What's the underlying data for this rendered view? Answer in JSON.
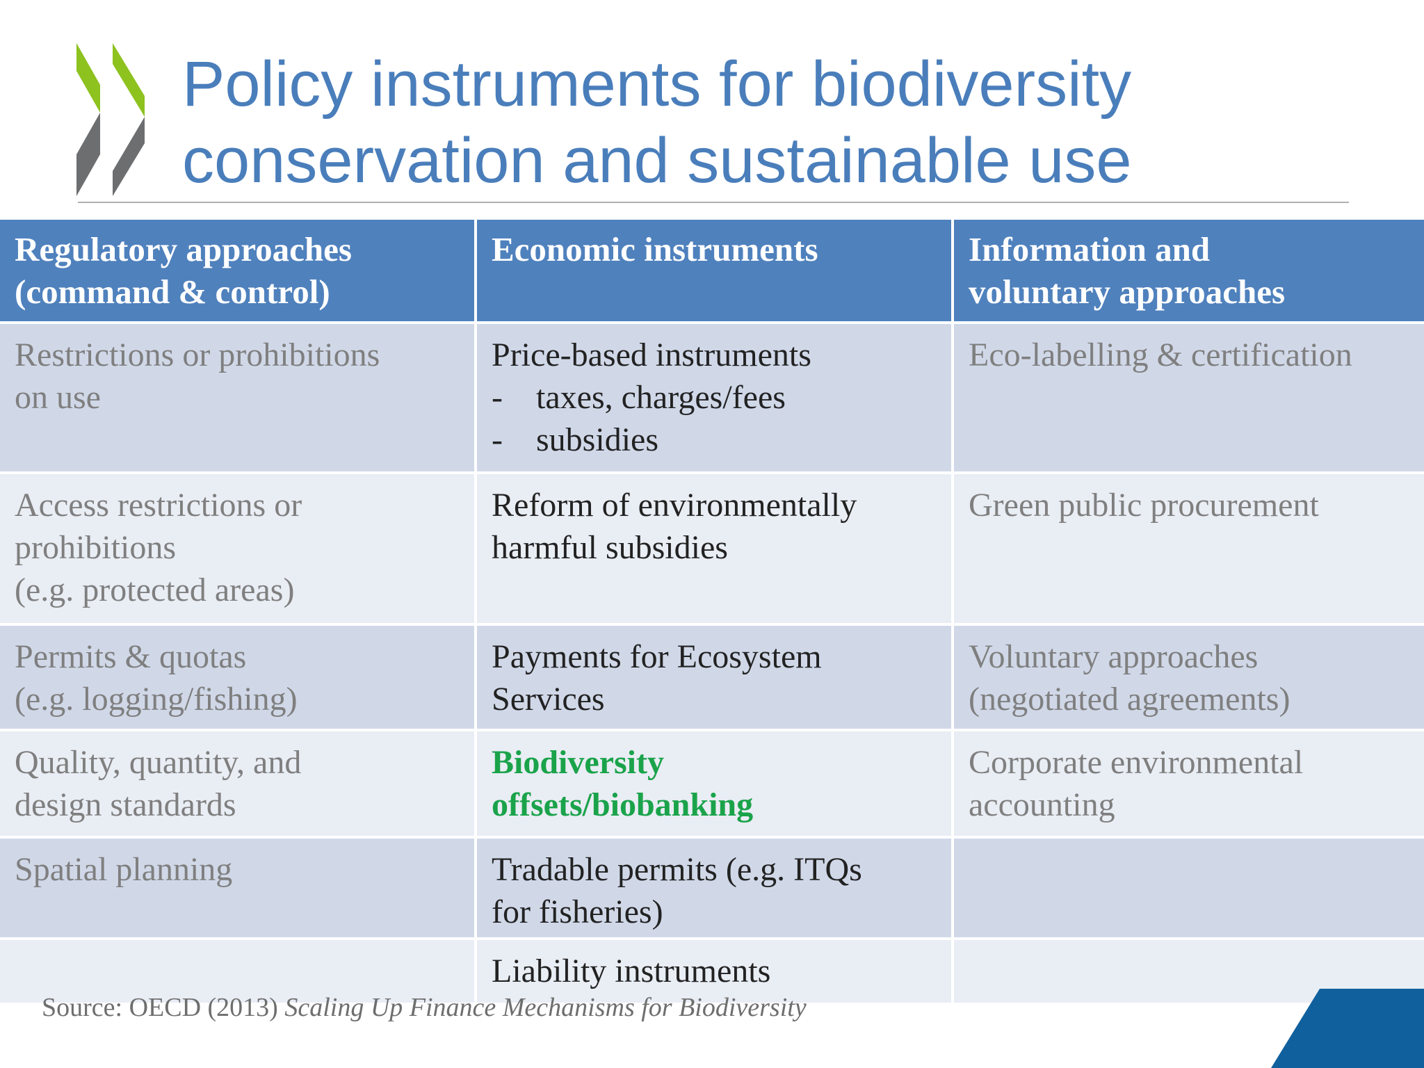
{
  "slide": {
    "title_lines": [
      "Policy instruments for biodiversity",
      "conservation and sustainable use"
    ],
    "brand_colors": {
      "title_blue": "#4a7ebb",
      "header_blue": "#4f81bd",
      "logo_green": "#8dc21f",
      "logo_gray": "#6d6e70",
      "highlight_green": "#1aa34a",
      "corner_blue": "#10609e"
    }
  },
  "table": {
    "headers": [
      [
        "Regulatory approaches",
        "(command & control)"
      ],
      [
        "Economic instruments"
      ],
      [
        "Information and",
        "voluntary approaches"
      ]
    ],
    "rows": [
      {
        "regulatory": [
          "Restrictions or prohibitions",
          "on use"
        ],
        "economic": {
          "lines": [
            "Price-based instruments"
          ],
          "bullets": [
            "taxes, charges/fees",
            "subsidies"
          ]
        },
        "information": [
          "Eco-labelling & certification"
        ]
      },
      {
        "regulatory": [
          "Access restrictions or",
          "prohibitions",
          "(e.g. protected areas)"
        ],
        "economic": {
          "lines": [
            "Reform of environmentally",
            "harmful subsidies"
          ]
        },
        "information": [
          "Green public procurement"
        ]
      },
      {
        "regulatory": [
          "Permits & quotas",
          "(e.g. logging/fishing)"
        ],
        "economic": {
          "lines": [
            "Payments for Ecosystem",
            "Services"
          ]
        },
        "information": [
          "Voluntary approaches",
          "(negotiated agreements)"
        ]
      },
      {
        "regulatory": [
          "Quality, quantity, and",
          "design standards"
        ],
        "economic": {
          "lines": [
            "Biodiversity",
            "offsets/biobanking"
          ],
          "highlight": true
        },
        "information": [
          "Corporate environmental",
          "accounting"
        ]
      },
      {
        "regulatory": [
          "Spatial planning"
        ],
        "economic": {
          "lines": [
            "Tradable permits (e.g. ITQs",
            "for fisheries)"
          ]
        },
        "information": []
      },
      {
        "regulatory": [],
        "economic": {
          "lines": [
            "Liability instruments"
          ]
        },
        "information": []
      }
    ]
  },
  "source": {
    "prefix": "Source: OECD (2013) ",
    "title": "Scaling Up Finance Mechanisms for Biodiversity"
  }
}
